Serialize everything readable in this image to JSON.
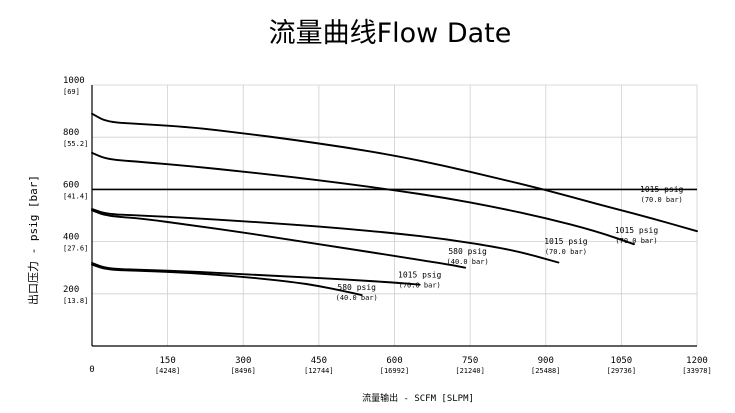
{
  "chart_data": {
    "type": "line",
    "title": "流量曲线Flow Date",
    "xlabel": "流量输出 - SCFM [SLPM]",
    "ylabel": "出口压力 - psig [bar]",
    "xlim": [
      0,
      1200
    ],
    "ylim": [
      0,
      1000
    ],
    "grid": true,
    "x_ticks": [
      {
        "label": "0",
        "sub": ""
      },
      {
        "label": "150",
        "sub": "[4248]"
      },
      {
        "label": "300",
        "sub": "[8496]"
      },
      {
        "label": "450",
        "sub": "[12744]"
      },
      {
        "label": "600",
        "sub": "[16992]"
      },
      {
        "label": "750",
        "sub": "[21240]"
      },
      {
        "label": "900",
        "sub": "[25488]"
      },
      {
        "label": "1050",
        "sub": "[29736]"
      },
      {
        "label": "1200",
        "sub": "[33978]"
      }
    ],
    "x_tick_values": [
      0,
      150,
      300,
      450,
      600,
      750,
      900,
      1050,
      1200
    ],
    "y_ticks": [
      {
        "label": "200",
        "sub": "[13.8]"
      },
      {
        "label": "400",
        "sub": "[27.6]"
      },
      {
        "label": "600",
        "sub": "[41.4]"
      },
      {
        "label": "800",
        "sub": "[55.2]"
      },
      {
        "label": "1000",
        "sub": "[69]"
      }
    ],
    "y_tick_values": [
      200,
      400,
      600,
      800,
      1000
    ],
    "reference_line": {
      "y": 600
    },
    "series": [
      {
        "label": "1015 psig",
        "sub": "(70.0 bar)",
        "x": [
          0,
          30,
          100,
          200,
          300,
          400,
          500,
          600,
          700,
          800,
          900,
          1000,
          1100,
          1200
        ],
        "y": [
          890,
          858,
          850,
          838,
          815,
          790,
          762,
          730,
          690,
          645,
          598,
          545,
          495,
          440
        ]
      },
      {
        "label": "1015 psig",
        "sub": "(70.0 bar)",
        "x": [
          0,
          30,
          100,
          200,
          300,
          400,
          500,
          600,
          700,
          800,
          900,
          1000,
          1075
        ],
        "y": [
          740,
          715,
          705,
          688,
          668,
          647,
          623,
          597,
          568,
          532,
          490,
          440,
          390
        ]
      },
      {
        "label": "1015 psig",
        "sub": "(70.0 bar)",
        "x": [
          0,
          30,
          100,
          200,
          300,
          400,
          500,
          600,
          700,
          800,
          860,
          925
        ],
        "y": [
          525,
          505,
          500,
          490,
          478,
          465,
          450,
          432,
          410,
          380,
          355,
          320
        ]
      },
      {
        "label": "580 psig",
        "sub": "(40.0 bar)",
        "x": [
          0,
          30,
          100,
          200,
          300,
          400,
          500,
          600,
          700,
          740
        ],
        "y": [
          520,
          498,
          488,
          462,
          435,
          405,
          375,
          345,
          315,
          300
        ]
      },
      {
        "label": "1015 psig",
        "sub": "(70.0 bar)",
        "x": [
          0,
          30,
          100,
          200,
          300,
          400,
          500,
          600,
          650
        ],
        "y": [
          318,
          296,
          292,
          285,
          275,
          265,
          255,
          243,
          235
        ]
      },
      {
        "label": "580 psig",
        "sub": "(40.0 bar)",
        "x": [
          0,
          30,
          100,
          200,
          300,
          400,
          450,
          500,
          535
        ],
        "y": [
          312,
          292,
          288,
          280,
          265,
          245,
          230,
          210,
          195
        ]
      }
    ],
    "label_anchor_x": [
      1130,
      1080,
      940,
      745,
      650,
      525
    ],
    "label_anchor_y": [
      590,
      432,
      390,
      352,
      262,
      215
    ]
  }
}
